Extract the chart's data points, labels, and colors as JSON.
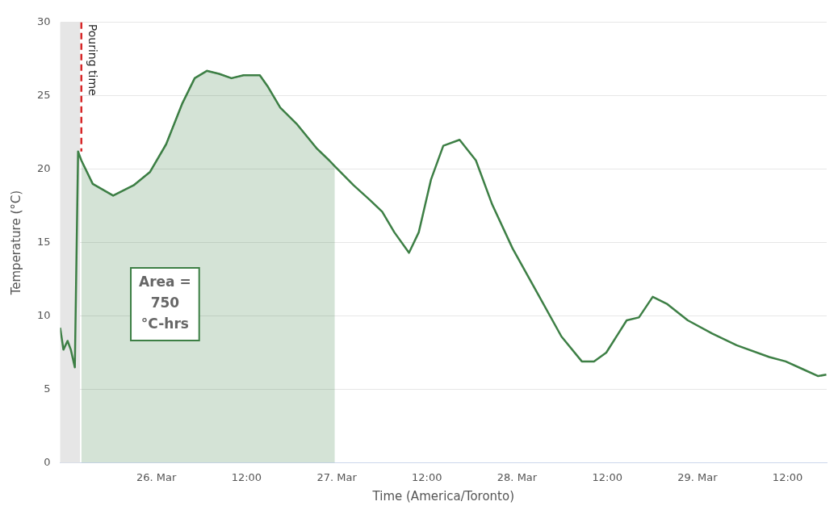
{
  "chart_data": {
    "type": "line",
    "xlabel": "Time (America/Toronto)",
    "ylabel": "Temperature (°C)",
    "xlim": [
      "--03-25T11:12",
      "--03-29T17:12"
    ],
    "xticks": [
      {
        "value": "--03-26T00:00",
        "label": "26. Mar"
      },
      {
        "value": "--03-26T12:00",
        "label": "12:00"
      },
      {
        "value": "--03-27T00:00",
        "label": "27. Mar"
      },
      {
        "value": "--03-27T12:00",
        "label": "12:00"
      },
      {
        "value": "--03-28T00:00",
        "label": "28. Mar"
      },
      {
        "value": "--03-28T12:00",
        "label": "12:00"
      },
      {
        "value": "--03-29T00:00",
        "label": "29. Mar"
      },
      {
        "value": "--03-29T12:00",
        "label": "12:00"
      }
    ],
    "ylim": [
      0,
      30
    ],
    "yticks": [
      0,
      5,
      10,
      15,
      20,
      25,
      30
    ],
    "grid": "y",
    "legend": false,
    "line_style": "solid",
    "marker": "none",
    "series": [
      {
        "color": "#3d7f45",
        "x": [
          "--03-25T11:12",
          "--03-25T11:38",
          "--03-25T12:11",
          "--03-25T12:37",
          "--03-25T13:09",
          "--03-25T13:35",
          "--03-25T14:01",
          "--03-25T15:32",
          "--03-25T18:15",
          "--03-25T20:58",
          "--03-25T23:08",
          "--03-26T01:18",
          "--03-26T03:28",
          "--03-26T05:06",
          "--03-26T06:43",
          "--03-26T08:21",
          "--03-26T09:59",
          "--03-26T11:36",
          "--03-26T13:46",
          "--03-26T14:52",
          "--03-26T16:29",
          "--03-26T18:39",
          "--03-26T21:22",
          "--03-26T23:00",
          "--03-26T23:45",
          "--03-27T02:15",
          "--03-27T04:25",
          "--03-27T06:03",
          "--03-27T07:40",
          "--03-27T09:37",
          "--03-27T10:55",
          "--03-27T12:33",
          "--03-27T14:11",
          "--03-27T16:21",
          "--03-27T18:31",
          "--03-27T20:41",
          "--03-27T23:24",
          "--03-28T02:39",
          "--03-28T05:54",
          "--03-28T08:37",
          "--03-28T10:14",
          "--03-28T11:52",
          "--03-28T14:35",
          "--03-28T16:13",
          "--03-28T18:03",
          "--03-28T20:00",
          "--03-28T22:43",
          "--03-29T01:58",
          "--03-29T05:13",
          "--03-29T09:34",
          "--03-29T11:44",
          "--03-29T13:54",
          "--03-29T16:04",
          "--03-29T17:09"
        ],
        "values": [
          9.2,
          7.7,
          8.3,
          7.7,
          6.5,
          21.2,
          20.6,
          19.0,
          18.2,
          18.9,
          19.8,
          21.7,
          24.5,
          26.2,
          26.7,
          26.5,
          26.2,
          26.4,
          26.4,
          25.6,
          24.2,
          23.1,
          21.4,
          20.6,
          20.2,
          18.9,
          17.9,
          17.1,
          15.7,
          14.3,
          15.7,
          19.3,
          21.6,
          22.0,
          20.6,
          17.6,
          14.6,
          11.6,
          8.6,
          6.9,
          6.9,
          7.5,
          9.7,
          9.9,
          11.3,
          10.8,
          9.7,
          8.8,
          8.0,
          7.2,
          6.9,
          6.4,
          5.9,
          6.0
        ]
      },
      {
        "type": "area",
        "color": "#3d7f45",
        "x": [
          "--03-25T14:01",
          "--03-25T15:32",
          "--03-25T18:15",
          "--03-25T20:58",
          "--03-25T23:08",
          "--03-26T01:18",
          "--03-26T03:28",
          "--03-26T05:06",
          "--03-26T06:43",
          "--03-26T08:21",
          "--03-26T09:59",
          "--03-26T11:36",
          "--03-26T13:46",
          "--03-26T14:52",
          "--03-26T16:29",
          "--03-26T18:39",
          "--03-26T21:22",
          "--03-26T23:00",
          "--03-26T23:45"
        ],
        "values": [
          20.6,
          19.0,
          18.2,
          18.9,
          19.8,
          21.7,
          24.5,
          26.2,
          26.7,
          26.5,
          26.2,
          26.4,
          26.4,
          25.6,
          24.2,
          23.1,
          21.4,
          20.6,
          20.2
        ]
      }
    ],
    "bands": [
      {
        "axis": "x",
        "from": "--03-25T11:12",
        "to": "--03-25T13:50",
        "color": "#e6e6e6"
      }
    ],
    "ref_lines": [
      {
        "axis": "x",
        "value": "--03-25T14:01",
        "label": "Pouring time",
        "color": "#d62728",
        "line_style": "dashed"
      }
    ],
    "annotations": [
      "Area = 750 °C-hrs"
    ]
  }
}
